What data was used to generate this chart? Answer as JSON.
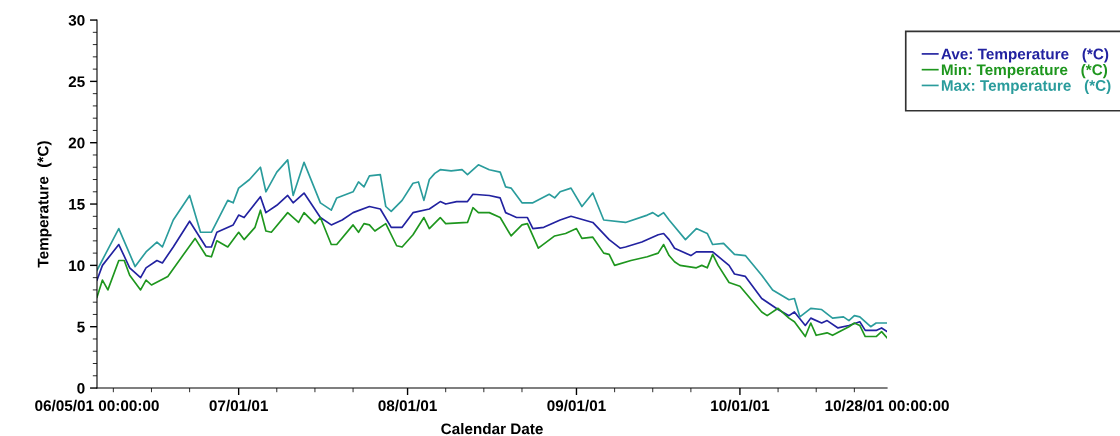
{
  "chart_data": {
    "type": "line",
    "xlabel": "Calendar Date",
    "ylabel": "Temperature  (*C)",
    "xlim": [
      "2001-06-05",
      "2001-10-28"
    ],
    "xticks": [
      {
        "value": "2001-06-05",
        "label": "06/05/01 00:00:00"
      },
      {
        "value": "2001-07-01",
        "label": "07/01/01"
      },
      {
        "value": "2001-08-01",
        "label": "08/01/01"
      },
      {
        "value": "2001-09-01",
        "label": "09/01/01"
      },
      {
        "value": "2001-10-01",
        "label": "10/01/01"
      },
      {
        "value": "2001-10-28",
        "label": "10/28/01 00:00:00"
      }
    ],
    "ylim": [
      0,
      30
    ],
    "yticks": [
      0,
      5,
      10,
      15,
      20,
      25,
      30
    ],
    "grid": false,
    "legend": "top right",
    "marker": "none",
    "line_style": "solid",
    "series": [
      {
        "name": "Ave: Temperature   (*C)",
        "color": "#2222a0",
        "x": [
          "2001-06-05",
          "2001-06-06",
          "2001-06-09",
          "2001-06-11",
          "2001-06-13",
          "2001-06-14",
          "2001-06-16",
          "2001-06-17",
          "2001-06-19",
          "2001-06-22",
          "2001-06-25",
          "2001-06-26",
          "2001-06-27",
          "2001-06-30",
          "2001-07-01",
          "2001-07-02",
          "2001-07-05",
          "2001-07-06",
          "2001-07-08",
          "2001-07-10",
          "2001-07-11",
          "2001-07-13",
          "2001-07-16",
          "2001-07-18",
          "2001-07-20",
          "2001-07-22",
          "2001-07-25",
          "2001-07-27",
          "2001-07-29",
          "2001-07-31",
          "2001-08-02",
          "2001-08-05",
          "2001-08-07",
          "2001-08-08",
          "2001-08-10",
          "2001-08-12",
          "2001-08-13",
          "2001-08-16",
          "2001-08-18",
          "2001-08-19",
          "2001-08-21",
          "2001-08-23",
          "2001-08-24",
          "2001-08-26",
          "2001-08-29",
          "2001-08-31",
          "2001-09-04",
          "2001-09-07",
          "2001-09-09",
          "2001-09-10",
          "2001-09-13",
          "2001-09-16",
          "2001-09-17",
          "2001-09-18",
          "2001-09-19",
          "2001-09-22",
          "2001-09-23",
          "2001-09-26",
          "2001-09-29",
          "2001-09-30",
          "2001-10-02",
          "2001-10-05",
          "2001-10-08",
          "2001-10-10",
          "2001-10-11",
          "2001-10-13",
          "2001-10-14",
          "2001-10-16",
          "2001-10-17",
          "2001-10-19",
          "2001-10-21",
          "2001-10-23",
          "2001-10-24",
          "2001-10-26",
          "2001-10-27",
          "2001-10-28"
        ],
        "values": [
          8.8,
          10.0,
          11.7,
          9.8,
          9.0,
          9.8,
          10.4,
          10.2,
          11.5,
          13.6,
          11.5,
          11.5,
          12.7,
          13.3,
          14.1,
          13.9,
          15.6,
          14.3,
          14.9,
          15.7,
          15.1,
          15.9,
          13.9,
          13.3,
          13.7,
          14.3,
          14.8,
          14.6,
          13.1,
          13.1,
          14.3,
          14.6,
          15.2,
          15.0,
          15.2,
          15.2,
          15.8,
          15.7,
          15.5,
          14.3,
          13.9,
          13.9,
          13.0,
          13.1,
          13.7,
          14.0,
          13.5,
          12.1,
          11.4,
          11.5,
          11.9,
          12.5,
          12.6,
          12.1,
          11.4,
          10.8,
          11.1,
          11.1,
          10.0,
          9.3,
          9.1,
          7.3,
          6.4,
          5.9,
          6.2,
          5.1,
          5.7,
          5.3,
          5.5,
          4.9,
          5.1,
          5.4,
          4.7,
          4.7,
          4.9,
          4.6
        ]
      },
      {
        "name": "Min: Temperature   (*C)",
        "color": "#1e961e",
        "x": [
          "2001-06-05",
          "2001-06-06",
          "2001-06-07",
          "2001-06-09",
          "2001-06-10",
          "2001-06-11",
          "2001-06-13",
          "2001-06-14",
          "2001-06-15",
          "2001-06-18",
          "2001-06-23",
          "2001-06-25",
          "2001-06-26",
          "2001-06-27",
          "2001-06-29",
          "2001-07-01",
          "2001-07-02",
          "2001-07-04",
          "2001-07-05",
          "2001-07-06",
          "2001-07-07",
          "2001-07-10",
          "2001-07-12",
          "2001-07-13",
          "2001-07-15",
          "2001-07-16",
          "2001-07-18",
          "2001-07-19",
          "2001-07-22",
          "2001-07-23",
          "2001-07-24",
          "2001-07-25",
          "2001-07-26",
          "2001-07-28",
          "2001-07-30",
          "2001-07-31",
          "2001-08-02",
          "2001-08-04",
          "2001-08-05",
          "2001-08-07",
          "2001-08-08",
          "2001-08-12",
          "2001-08-13",
          "2001-08-14",
          "2001-08-16",
          "2001-08-18",
          "2001-08-20",
          "2001-08-22",
          "2001-08-23",
          "2001-08-25",
          "2001-08-28",
          "2001-08-30",
          "2001-09-01",
          "2001-09-02",
          "2001-09-04",
          "2001-09-06",
          "2001-09-07",
          "2001-09-08",
          "2001-09-11",
          "2001-09-14",
          "2001-09-16",
          "2001-09-17",
          "2001-09-18",
          "2001-09-19",
          "2001-09-20",
          "2001-09-23",
          "2001-09-24",
          "2001-09-25",
          "2001-09-26",
          "2001-09-27",
          "2001-09-29",
          "2001-10-01",
          "2001-10-05",
          "2001-10-06",
          "2001-10-08",
          "2001-10-10",
          "2001-10-11",
          "2001-10-13",
          "2001-10-14",
          "2001-10-15",
          "2001-10-17",
          "2001-10-18",
          "2001-10-21",
          "2001-10-22",
          "2001-10-23",
          "2001-10-24",
          "2001-10-26",
          "2001-10-27",
          "2001-10-28"
        ],
        "values": [
          7.4,
          8.8,
          8.0,
          10.4,
          10.4,
          9.2,
          8.0,
          8.8,
          8.4,
          9.1,
          12.2,
          10.8,
          10.7,
          12.0,
          11.5,
          12.7,
          12.1,
          13.1,
          14.5,
          12.8,
          12.7,
          14.3,
          13.5,
          14.3,
          13.4,
          13.9,
          11.7,
          11.7,
          13.3,
          12.7,
          13.4,
          13.3,
          12.8,
          13.4,
          11.6,
          11.5,
          12.5,
          13.9,
          13.0,
          13.9,
          13.4,
          13.5,
          14.7,
          14.3,
          14.3,
          13.9,
          12.4,
          13.3,
          13.4,
          11.4,
          12.4,
          12.6,
          13.0,
          12.2,
          12.3,
          11.0,
          10.9,
          10.0,
          10.4,
          10.7,
          11.0,
          11.7,
          10.8,
          10.3,
          10.0,
          9.8,
          10.0,
          9.8,
          10.9,
          10.0,
          8.6,
          8.3,
          6.2,
          5.9,
          6.5,
          5.7,
          5.4,
          4.2,
          5.3,
          4.3,
          4.5,
          4.3,
          5.0,
          5.3,
          5.1,
          4.2,
          4.2,
          4.6,
          4.1
        ]
      },
      {
        "name": "Max: Temperature   (*C)",
        "color": "#2a9c9c",
        "x": [
          "2001-06-05",
          "2001-06-09",
          "2001-06-12",
          "2001-06-14",
          "2001-06-16",
          "2001-06-17",
          "2001-06-19",
          "2001-06-22",
          "2001-06-24",
          "2001-06-26",
          "2001-06-29",
          "2001-06-30",
          "2001-07-01",
          "2001-07-03",
          "2001-07-05",
          "2001-07-06",
          "2001-07-08",
          "2001-07-10",
          "2001-07-11",
          "2001-07-13",
          "2001-07-16",
          "2001-07-18",
          "2001-07-19",
          "2001-07-22",
          "2001-07-23",
          "2001-07-24",
          "2001-07-25",
          "2001-07-27",
          "2001-07-28",
          "2001-07-29",
          "2001-07-31",
          "2001-08-02",
          "2001-08-03",
          "2001-08-04",
          "2001-08-05",
          "2001-08-06",
          "2001-08-07",
          "2001-08-09",
          "2001-08-11",
          "2001-08-12",
          "2001-08-14",
          "2001-08-16",
          "2001-08-18",
          "2001-08-19",
          "2001-08-20",
          "2001-08-22",
          "2001-08-24",
          "2001-08-27",
          "2001-08-28",
          "2001-08-29",
          "2001-08-31",
          "2001-09-02",
          "2001-09-04",
          "2001-09-06",
          "2001-09-10",
          "2001-09-14",
          "2001-09-15",
          "2001-09-16",
          "2001-09-17",
          "2001-09-18",
          "2001-09-21",
          "2001-09-23",
          "2001-09-25",
          "2001-09-26",
          "2001-09-28",
          "2001-09-30",
          "2001-10-02",
          "2001-10-05",
          "2001-10-07",
          "2001-10-10",
          "2001-10-11",
          "2001-10-12",
          "2001-10-14",
          "2001-10-16",
          "2001-10-18",
          "2001-10-20",
          "2001-10-21",
          "2001-10-22",
          "2001-10-23",
          "2001-10-25",
          "2001-10-26",
          "2001-10-28"
        ],
        "values": [
          9.6,
          13.0,
          9.9,
          11.1,
          11.9,
          11.5,
          13.7,
          15.7,
          12.7,
          12.7,
          15.3,
          15.1,
          16.3,
          17.0,
          18.0,
          16.0,
          17.6,
          18.6,
          15.7,
          18.4,
          15.1,
          14.5,
          15.5,
          16.0,
          16.8,
          16.4,
          17.3,
          17.4,
          14.8,
          14.4,
          15.3,
          16.7,
          16.8,
          15.3,
          17.0,
          17.5,
          17.8,
          17.7,
          17.8,
          17.4,
          18.2,
          17.8,
          17.6,
          16.4,
          16.3,
          15.1,
          15.1,
          15.8,
          15.5,
          16.0,
          16.3,
          14.8,
          15.9,
          13.7,
          13.5,
          14.1,
          14.3,
          14.0,
          14.3,
          13.7,
          12.1,
          13.0,
          12.6,
          11.7,
          11.8,
          10.9,
          10.8,
          9.2,
          8.0,
          7.2,
          7.3,
          5.8,
          6.5,
          6.4,
          5.7,
          5.8,
          5.5,
          5.9,
          5.8,
          5.0,
          5.3,
          5.3
        ]
      }
    ]
  }
}
